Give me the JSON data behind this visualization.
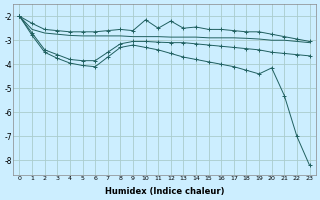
{
  "xlabel": "Humidex (Indice chaleur)",
  "bg_color": "#cceeff",
  "grid_color": "#aacccc",
  "line_color": "#206060",
  "xlim": [
    -0.5,
    23.5
  ],
  "ylim": [
    -8.6,
    -1.5
  ],
  "yticks": [
    -8,
    -7,
    -6,
    -5,
    -4,
    -3,
    -2
  ],
  "xticks": [
    0,
    1,
    2,
    3,
    4,
    5,
    6,
    7,
    8,
    9,
    10,
    11,
    12,
    13,
    14,
    15,
    16,
    17,
    18,
    19,
    20,
    21,
    22,
    23
  ],
  "s1_x": [
    0,
    1,
    2,
    3,
    4,
    5,
    6,
    7,
    8,
    9,
    10,
    11,
    12,
    13,
    14,
    15,
    16,
    17,
    18,
    19,
    20,
    21,
    22,
    23
  ],
  "s1_y": [
    -2.0,
    -2.3,
    -2.55,
    -2.6,
    -2.65,
    -2.65,
    -2.65,
    -2.6,
    -2.55,
    -2.6,
    -2.15,
    -2.5,
    -2.2,
    -2.5,
    -2.45,
    -2.55,
    -2.55,
    -2.6,
    -2.65,
    -2.65,
    -2.75,
    -2.85,
    -2.95,
    -3.05
  ],
  "s2_x": [
    0,
    1,
    2,
    3,
    4,
    5,
    6,
    7,
    8,
    9,
    10,
    11,
    12,
    13,
    14,
    15,
    16,
    17,
    18,
    19,
    20,
    21,
    22,
    23
  ],
  "s2_y": [
    -2.0,
    -2.55,
    -2.7,
    -2.75,
    -2.8,
    -2.82,
    -2.82,
    -2.82,
    -2.82,
    -2.85,
    -2.85,
    -2.85,
    -2.87,
    -2.87,
    -2.87,
    -2.9,
    -2.9,
    -2.9,
    -2.92,
    -2.95,
    -3.0,
    -3.0,
    -3.05,
    -3.1
  ],
  "s3_x": [
    0,
    1,
    2,
    3,
    4,
    5,
    6,
    7,
    8,
    9,
    10,
    11,
    12,
    13,
    14,
    15,
    16,
    17,
    18,
    19,
    20,
    21,
    22,
    23
  ],
  "s3_y": [
    -2.0,
    -2.7,
    -3.4,
    -3.6,
    -3.8,
    -3.85,
    -3.85,
    -3.5,
    -3.15,
    -3.05,
    -3.05,
    -3.08,
    -3.1,
    -3.1,
    -3.15,
    -3.2,
    -3.25,
    -3.3,
    -3.35,
    -3.4,
    -3.5,
    -3.55,
    -3.6,
    -3.65
  ],
  "s4_x": [
    0,
    1,
    2,
    3,
    4,
    5,
    6,
    7,
    8,
    9,
    10,
    11,
    12,
    13,
    14,
    15,
    16,
    17,
    18,
    19,
    20,
    21,
    22,
    23
  ],
  "s4_y": [
    -2.0,
    -2.8,
    -3.5,
    -3.75,
    -3.95,
    -4.05,
    -4.1,
    -3.7,
    -3.3,
    -3.2,
    -3.3,
    -3.4,
    -3.55,
    -3.7,
    -3.8,
    -3.9,
    -4.0,
    -4.1,
    -4.25,
    -4.4,
    -4.15,
    -5.3,
    -7.0,
    -8.2
  ]
}
